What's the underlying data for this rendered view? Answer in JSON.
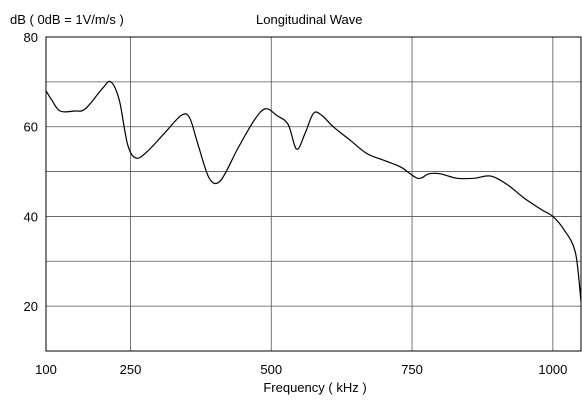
{
  "chart_data": {
    "type": "line",
    "title": "Longitudinal Wave",
    "ylabel": "dB ( 0dB = 1V/m/s )",
    "xlabel": "Frequency ( kHz )",
    "xlim": [
      100,
      1050
    ],
    "ylim": [
      10,
      80
    ],
    "x_ticks": [
      100,
      250,
      500,
      750,
      1000
    ],
    "x_tick_labels": [
      "100",
      "250",
      "500",
      "750",
      "1000"
    ],
    "y_ticks": [
      20,
      40,
      60,
      80
    ],
    "y_tick_labels": [
      "20",
      "40",
      "60",
      "80"
    ],
    "y_gridlines": [
      20,
      30,
      40,
      50,
      60,
      70
    ],
    "x_gridlines": [
      250,
      500,
      750,
      1000
    ],
    "grid": true,
    "series": [
      {
        "color": "#000000",
        "x": [
          100,
          110,
          125,
          150,
          170,
          200,
          215,
          230,
          245,
          260,
          280,
          310,
          340,
          355,
          370,
          390,
          410,
          440,
          470,
          490,
          510,
          530,
          545,
          560,
          575,
          590,
          610,
          640,
          670,
          700,
          730,
          760,
          780,
          800,
          830,
          860,
          890,
          920,
          950,
          980,
          1000,
          1020,
          1040,
          1050
        ],
        "y": [
          68,
          66,
          63.5,
          63.5,
          64,
          68.5,
          70,
          66,
          56,
          53,
          54.5,
          58.5,
          62.5,
          62,
          56,
          48.5,
          48,
          55,
          61.5,
          64,
          62.5,
          60.5,
          55,
          58.5,
          63,
          62.5,
          60,
          57,
          54,
          52.5,
          51,
          48.5,
          49.5,
          49.5,
          48.5,
          48.5,
          49,
          47,
          44,
          41.5,
          40,
          37,
          32,
          21
        ]
      }
    ]
  }
}
